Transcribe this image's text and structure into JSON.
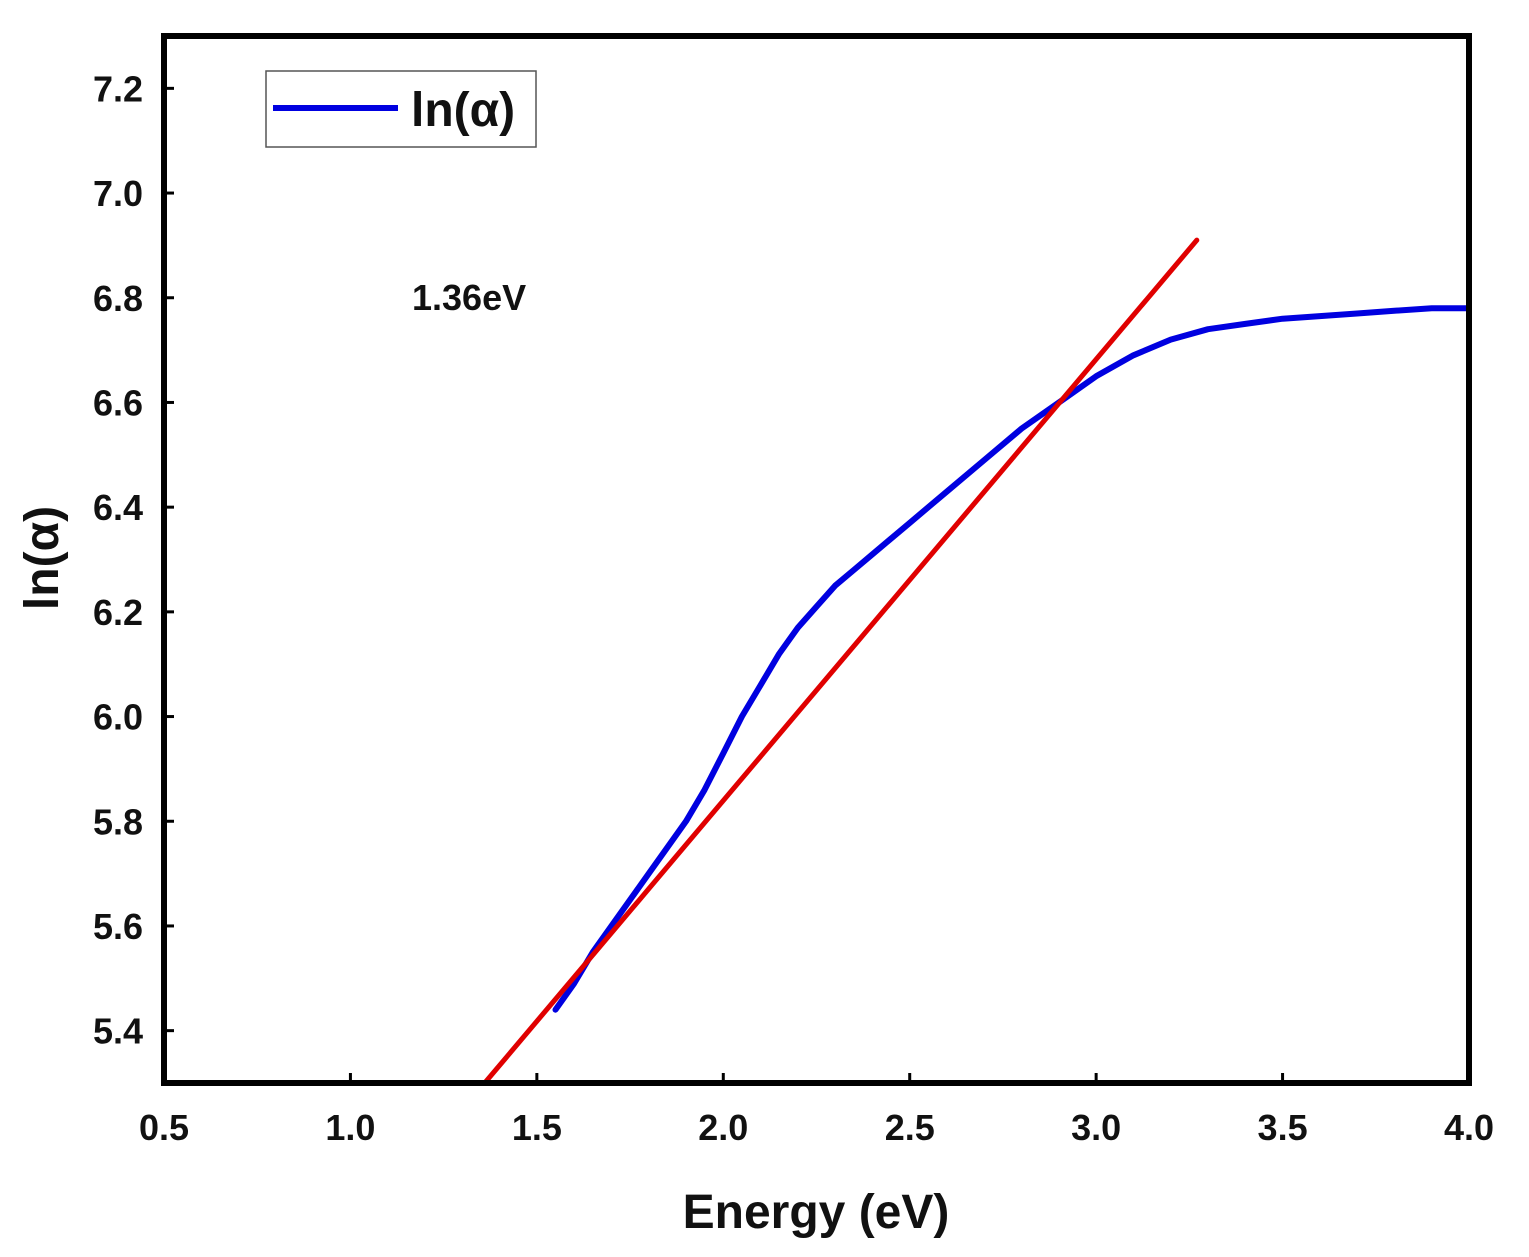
{
  "chart_data": {
    "type": "line",
    "xlabel": "Energy (eV)",
    "ylabel": "ln(α)",
    "xlim": [
      0.5,
      4.0
    ],
    "ylim": [
      5.3,
      7.3
    ],
    "xticks": [
      0.5,
      1.0,
      1.5,
      2.0,
      2.5,
      3.0,
      3.5,
      4.0
    ],
    "xtick_labels": [
      "0.5",
      "1.0",
      "1.5",
      "2.0",
      "2.5",
      "3.0",
      "3.5",
      "4.0"
    ],
    "yticks": [
      5.4,
      5.6,
      5.8,
      6.0,
      6.2,
      6.4,
      6.6,
      6.8,
      7.0,
      7.2
    ],
    "ytick_labels": [
      "5.4",
      "5.6",
      "5.8",
      "6.0",
      "6.2",
      "6.4",
      "6.6",
      "6.8",
      "7.0",
      "7.2"
    ],
    "grid": false,
    "legend": {
      "placement": "top-left",
      "entries": [
        "ln(α)"
      ]
    },
    "annotation": "1.36eV",
    "series": [
      {
        "name": "ln(α)",
        "color": "#0000e0",
        "x": [
          1.55,
          1.6,
          1.65,
          1.7,
          1.75,
          1.8,
          1.85,
          1.9,
          1.95,
          2.0,
          2.05,
          2.1,
          2.15,
          2.2,
          2.25,
          2.3,
          2.35,
          2.4,
          2.5,
          2.6,
          2.7,
          2.8,
          2.9,
          3.0,
          3.1,
          3.2,
          3.3,
          3.4,
          3.5,
          3.6,
          3.7,
          3.8,
          3.9,
          4.0
        ],
        "y": [
          5.44,
          5.49,
          5.55,
          5.6,
          5.65,
          5.7,
          5.75,
          5.8,
          5.86,
          5.93,
          6.0,
          6.06,
          6.12,
          6.17,
          6.21,
          6.25,
          6.28,
          6.31,
          6.37,
          6.43,
          6.49,
          6.55,
          6.6,
          6.65,
          6.69,
          6.72,
          6.74,
          6.75,
          6.76,
          6.765,
          6.77,
          6.775,
          6.78,
          6.78
        ]
      }
    ],
    "fit_line": {
      "color": "#e00000",
      "x": [
        1.36,
        3.27
      ],
      "y": [
        5.3,
        6.91
      ]
    }
  }
}
